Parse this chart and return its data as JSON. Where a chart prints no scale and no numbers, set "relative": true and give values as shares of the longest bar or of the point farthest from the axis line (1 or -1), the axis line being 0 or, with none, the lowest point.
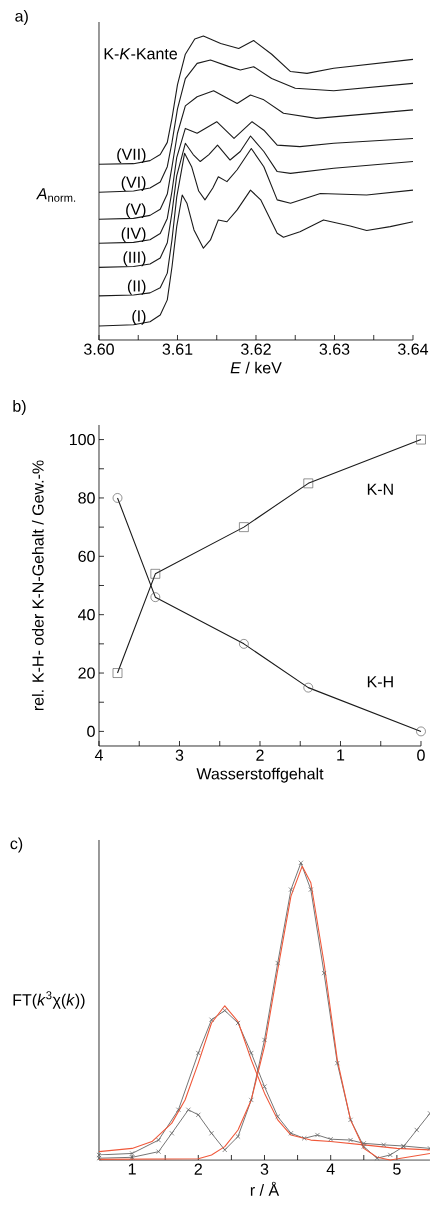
{
  "chart_data": [
    {
      "type": "line",
      "title": "a)",
      "xlabel": "*E* / keV",
      "ylabel": "*A*$_{norm.}$",
      "relative": true,
      "annotations": [
        "K-*K*-Kante"
      ],
      "xlim": [
        3.6,
        3.64
      ],
      "xticks": [
        {
          "value": 3.6,
          "label": "3.60"
        },
        {
          "value": 3.605,
          "label": null
        },
        {
          "value": 3.61,
          "label": "3.61"
        },
        {
          "value": 3.615,
          "label": null
        },
        {
          "value": 3.62,
          "label": "3.62"
        },
        {
          "value": 3.625,
          "label": null
        },
        {
          "value": 3.63,
          "label": "3.63"
        },
        {
          "value": 3.635,
          "label": null
        },
        {
          "value": 3.64,
          "label": "3.64"
        }
      ],
      "series": [
        {
          "name": "(I)",
          "color": "#1a1a1a",
          "x": [
            3.6,
            3.6044,
            3.6065,
            3.6078,
            3.6087,
            3.6093,
            3.6099,
            3.6106,
            3.6112,
            3.6121,
            3.6133,
            3.6142,
            3.6152,
            3.6163,
            3.6176,
            3.6193,
            3.6206,
            3.6227,
            3.6235,
            3.6256,
            3.6286,
            3.632,
            3.6341,
            3.6371,
            3.64
          ],
          "values": [
            0.046,
            0.05,
            0.06,
            0.082,
            0.132,
            0.241,
            0.373,
            0.477,
            0.45,
            0.362,
            0.302,
            0.329,
            0.395,
            0.389,
            0.428,
            0.493,
            0.461,
            0.351,
            0.338,
            0.356,
            0.395,
            0.375,
            0.36,
            0.373,
            0.389
          ]
        },
        {
          "name": "(II)",
          "color": "#1a1a1a",
          "x": [
            3.6,
            3.6044,
            3.6065,
            3.6078,
            3.6087,
            3.6093,
            3.6099,
            3.6109,
            3.6118,
            3.6127,
            3.6135,
            3.6145,
            3.6152,
            3.6163,
            3.6176,
            3.6194,
            3.621,
            3.6227,
            3.6244,
            3.6282,
            3.6341,
            3.64
          ],
          "values": [
            0.145,
            0.148,
            0.155,
            0.172,
            0.22,
            0.33,
            0.47,
            0.614,
            0.57,
            0.49,
            0.461,
            0.5,
            0.537,
            0.521,
            0.56,
            0.63,
            0.57,
            0.461,
            0.45,
            0.482,
            0.477,
            0.493
          ]
        },
        {
          "name": "(III)",
          "color": "#1a1a1a",
          "x": [
            3.6,
            3.6044,
            3.6065,
            3.6078,
            3.6087,
            3.6093,
            3.6099,
            3.611,
            3.612,
            3.6129,
            3.614,
            3.6151,
            3.6167,
            3.618,
            3.6193,
            3.621,
            3.6227,
            3.6244,
            3.6299,
            3.64
          ],
          "values": [
            0.239,
            0.242,
            0.25,
            0.27,
            0.32,
            0.42,
            0.54,
            0.647,
            0.61,
            0.587,
            0.61,
            0.641,
            0.592,
            0.62,
            0.671,
            0.62,
            0.554,
            0.548,
            0.565,
            0.587
          ]
        },
        {
          "name": "(IV)",
          "color": "#1a1a1a",
          "x": [
            3.6,
            3.6044,
            3.6065,
            3.6078,
            3.6087,
            3.6093,
            3.6099,
            3.611,
            3.6125,
            3.615,
            3.6172,
            3.6195,
            3.621,
            3.6227,
            3.6256,
            3.6299,
            3.64
          ],
          "values": [
            0.318,
            0.321,
            0.33,
            0.35,
            0.4,
            0.49,
            0.6,
            0.696,
            0.68,
            0.718,
            0.663,
            0.718,
            0.69,
            0.641,
            0.636,
            0.647,
            0.663
          ]
        },
        {
          "name": "(V)",
          "color": "#1a1a1a",
          "x": [
            3.6,
            3.6044,
            3.6065,
            3.6078,
            3.6087,
            3.6093,
            3.61,
            3.611,
            3.6125,
            3.6146,
            3.6176,
            3.6193,
            3.621,
            3.6235,
            3.6277,
            3.64
          ],
          "values": [
            0.397,
            0.4,
            0.41,
            0.43,
            0.48,
            0.57,
            0.68,
            0.77,
            0.8,
            0.82,
            0.778,
            0.806,
            0.79,
            0.746,
            0.729,
            0.757
          ]
        },
        {
          "name": "(VI)",
          "color": "#1a1a1a",
          "x": [
            3.6,
            3.6044,
            3.6065,
            3.6078,
            3.6087,
            3.6093,
            3.61,
            3.611,
            3.6125,
            3.6142,
            3.6165,
            3.618,
            3.6197,
            3.622,
            3.625,
            3.6299,
            3.64
          ],
          "values": [
            0.486,
            0.49,
            0.5,
            0.52,
            0.57,
            0.65,
            0.76,
            0.86,
            0.91,
            0.921,
            0.9,
            0.888,
            0.899,
            0.86,
            0.828,
            0.82,
            0.844
          ]
        },
        {
          "name": "(VII)",
          "color": "#1a1a1a",
          "x": [
            3.6,
            3.6044,
            3.6065,
            3.6078,
            3.6087,
            3.6093,
            3.61,
            3.611,
            3.6122,
            3.6133,
            3.6155,
            3.6178,
            3.6197,
            3.622,
            3.6244,
            3.6265,
            3.6299,
            3.64
          ],
          "values": [
            0.578,
            0.58,
            0.59,
            0.61,
            0.65,
            0.73,
            0.84,
            0.94,
            0.99,
            1.0,
            0.975,
            0.959,
            0.985,
            0.94,
            0.883,
            0.877,
            0.894,
            0.923
          ]
        }
      ]
    },
    {
      "type": "line",
      "title": "b)",
      "xlabel": "Wasserstoffgehalt",
      "ylabel": "rel. K-H- oder K-N-Gehalt / Gew.-%",
      "xlim": [
        4,
        0
      ],
      "ylim": [
        -5,
        105
      ],
      "xticks": [
        4,
        {
          "value": 3.5,
          "label": null
        },
        3,
        {
          "value": 2.5,
          "label": null
        },
        2,
        {
          "value": 1.5,
          "label": null
        },
        1,
        {
          "value": 0.5,
          "label": null
        },
        0
      ],
      "yticks": [
        0,
        {
          "value": 10,
          "label": null
        },
        20,
        {
          "value": 30,
          "label": null
        },
        40,
        {
          "value": 50,
          "label": null
        },
        60,
        {
          "value": 70,
          "label": null
        },
        80,
        {
          "value": 90,
          "label": null
        },
        100
      ],
      "x": [
        3.77,
        3.3,
        2.2,
        1.4,
        0
      ],
      "series": [
        {
          "name": "K-H",
          "color": "#1a1a1a",
          "marker": "circle",
          "values": [
            80,
            46,
            30,
            15,
            0
          ]
        },
        {
          "name": "K-N",
          "color": "#1a1a1a",
          "marker": "square",
          "values": [
            20,
            54,
            70,
            85,
            100
          ]
        }
      ]
    },
    {
      "type": "line",
      "title": "c)",
      "xlabel": "r / Å",
      "ylabel": "FT(*k*$^{3}$χ(*k*))",
      "relative": true,
      "xlim": [
        0.5,
        5.5
      ],
      "xticks": [
        1,
        {
          "value": 1.5,
          "label": null
        },
        2,
        {
          "value": 2.5,
          "label": null
        },
        3,
        {
          "value": 3.5,
          "label": null
        },
        4,
        {
          "value": 4.5,
          "label": null
        },
        5
      ],
      "series": [
        {
          "color": "#3a3a3a",
          "marker": "cross",
          "x": [
            0.5,
            1.0,
            1.4,
            1.6,
            1.85,
            2.0,
            2.2,
            2.4,
            2.6,
            2.8,
            3.0,
            3.2,
            3.4,
            3.55,
            3.7,
            3.9,
            4.1,
            4.3,
            4.5,
            4.7,
            4.9,
            5.1,
            5.3,
            5.5
          ],
          "values": [
            0.006,
            0.009,
            0.028,
            0.09,
            0.169,
            0.152,
            0.09,
            0.034,
            0.079,
            0.202,
            0.404,
            0.663,
            0.91,
            1.0,
            0.91,
            0.629,
            0.326,
            0.135,
            0.045,
            0.006,
            0.017,
            0.045,
            0.101,
            0.157
          ]
        },
        {
          "color": "#3a3a3a",
          "marker": "cross",
          "x": [
            0.5,
            1.0,
            1.4,
            1.7,
            2.0,
            2.2,
            2.4,
            2.6,
            2.8,
            3.0,
            3.2,
            3.4,
            3.6,
            3.8,
            4.0,
            4.3,
            4.5,
            4.8,
            5.1,
            5.5
          ],
          "values": [
            0.017,
            0.022,
            0.067,
            0.169,
            0.36,
            0.472,
            0.503,
            0.461,
            0.36,
            0.247,
            0.146,
            0.09,
            0.073,
            0.084,
            0.07,
            0.067,
            0.056,
            0.051,
            0.047,
            0.039
          ]
        },
        {
          "color": "#f0583a",
          "x": [
            0.5,
            2.0,
            2.2,
            2.4,
            2.6,
            2.8,
            3.0,
            3.2,
            3.4,
            3.57,
            3.7,
            3.9,
            4.1,
            4.3,
            4.5,
            4.7,
            4.9,
            5.5
          ],
          "values": [
            0.002,
            0.004,
            0.017,
            0.045,
            0.101,
            0.202,
            0.382,
            0.64,
            0.888,
            0.989,
            0.933,
            0.663,
            0.337,
            0.135,
            0.039,
            0.009,
            0.0,
            0.022
          ]
        },
        {
          "color": "#f0583a",
          "x": [
            0.5,
            1.0,
            1.3,
            1.6,
            1.8,
            2.0,
            2.2,
            2.4,
            2.6,
            2.8,
            3.0,
            3.2,
            3.4,
            3.7,
            4.0,
            4.5,
            5.0,
            5.5
          ],
          "values": [
            0.028,
            0.039,
            0.062,
            0.124,
            0.202,
            0.326,
            0.461,
            0.519,
            0.466,
            0.337,
            0.225,
            0.135,
            0.084,
            0.067,
            0.062,
            0.051,
            0.039,
            0.034
          ]
        }
      ]
    }
  ]
}
